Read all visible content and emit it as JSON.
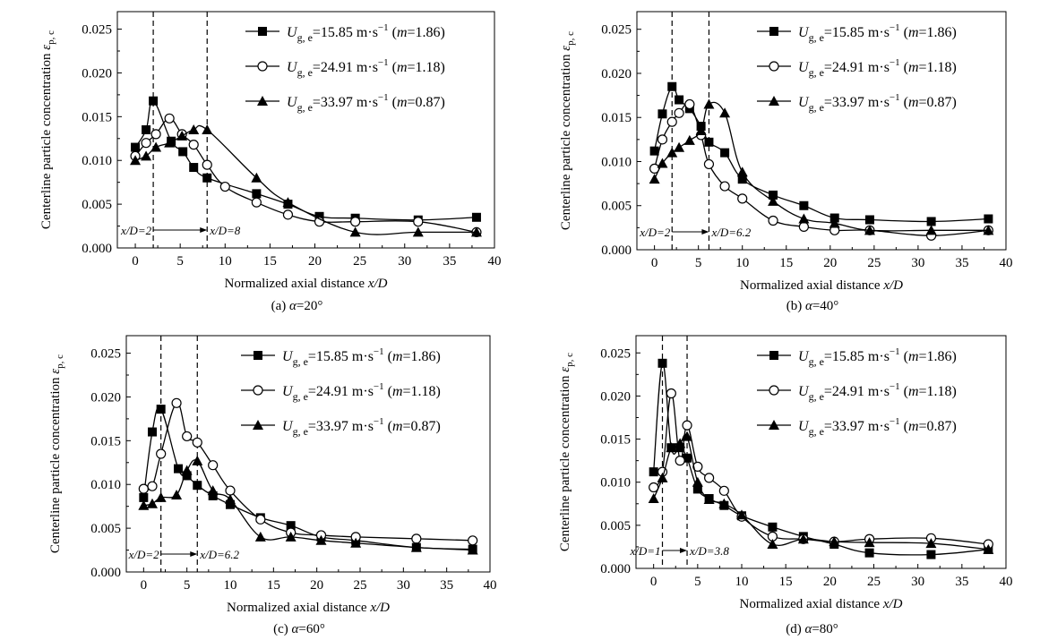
{
  "figure": {
    "legend_entries": [
      {
        "main": "U",
        "sub": "g, e",
        "value": "=15.85 m·s",
        "sup": "−1",
        "m_label": "m",
        "m_value": "=1.86)"
      },
      {
        "main": "U",
        "sub": "g, e",
        "value": "=24.91 m·s",
        "sup": "−1",
        "m_label": "m",
        "m_value": "=1.18)"
      },
      {
        "main": "U",
        "sub": "g, e",
        "value": "=33.97 m·s",
        "sup": "−1",
        "m_label": "m",
        "m_value": "=0.87)"
      }
    ],
    "ylabel_main": "Centerline particle concentration ",
    "ylabel_symbol": "ε",
    "ylabel_sub": "p, c",
    "xlabel_main": "Normalized axial distance ",
    "xlabel_symbol": "x/D",
    "marker_styles": [
      "filled-square",
      "open-circle",
      "filled-triangle"
    ]
  },
  "chart_data": [
    {
      "type": "line",
      "caption_prefix": "(a) ",
      "caption_symbol": "α",
      "caption_value": "=20°",
      "xlim": [
        -2,
        40
      ],
      "ylim": [
        0,
        0.027
      ],
      "xticks": [
        0,
        5,
        10,
        15,
        20,
        25,
        30,
        35,
        40
      ],
      "yticks": [
        0.0,
        0.005,
        0.01,
        0.015,
        0.02,
        0.025
      ],
      "ytick_labels": [
        "0.000",
        "0.005",
        "0.010",
        "0.015",
        "0.020",
        "0.025"
      ],
      "vlines": [
        2,
        8
      ],
      "annotation_left": "x/D=2",
      "annotation_right": "x/D=8",
      "series": [
        {
          "name": "Ug,e=15.85 m·s−1 (m=1.86)",
          "marker": "filled-square",
          "x": [
            0,
            1.2,
            2.0,
            4.0,
            5.3,
            6.5,
            8.0,
            13.5,
            17.0,
            20.5,
            24.5,
            31.5,
            38.0
          ],
          "y": [
            0.0115,
            0.0135,
            0.0168,
            0.0122,
            0.011,
            0.0092,
            0.008,
            0.0062,
            0.005,
            0.0036,
            0.0034,
            0.0032,
            0.0035
          ]
        },
        {
          "name": "Ug,e=24.91 m·s−1 (m=1.18)",
          "marker": "open-circle",
          "x": [
            0,
            1.2,
            2.3,
            3.8,
            5.2,
            6.5,
            8.0,
            10.0,
            13.5,
            17.0,
            20.5,
            24.5,
            31.5,
            38.0
          ],
          "y": [
            0.0105,
            0.012,
            0.013,
            0.0148,
            0.013,
            0.0118,
            0.0095,
            0.007,
            0.0052,
            0.0038,
            0.003,
            0.003,
            0.003,
            0.0018
          ]
        },
        {
          "name": "Ug,e=33.97 m·s−1 (m=0.87)",
          "marker": "filled-triangle",
          "x": [
            0,
            1.2,
            2.3,
            3.8,
            5.2,
            6.5,
            8.0,
            13.5,
            17.0,
            24.5,
            31.5,
            38.0
          ],
          "y": [
            0.01,
            0.0105,
            0.0115,
            0.012,
            0.0128,
            0.0135,
            0.0135,
            0.008,
            0.0052,
            0.0018,
            0.0018,
            0.0018
          ]
        }
      ]
    },
    {
      "type": "line",
      "caption_prefix": "(b) ",
      "caption_symbol": "α",
      "caption_value": "=40°",
      "xlim": [
        -2,
        40
      ],
      "ylim": [
        0,
        0.027
      ],
      "xticks": [
        0,
        5,
        10,
        15,
        20,
        25,
        30,
        35,
        40
      ],
      "yticks": [
        0.0,
        0.005,
        0.01,
        0.015,
        0.02,
        0.025
      ],
      "ytick_labels": [
        "0.000",
        "0.005",
        "0.010",
        "0.015",
        "0.020",
        "0.025"
      ],
      "vlines": [
        2,
        6.2
      ],
      "annotation_left": "x/D=2",
      "annotation_right": "x/D=6.2",
      "series": [
        {
          "name": "Ug,e=15.85 m·s−1 (m=1.86)",
          "marker": "filled-square",
          "x": [
            0,
            0.9,
            2.0,
            2.8,
            4.0,
            5.3,
            6.2,
            8.0,
            10.0,
            13.5,
            17.0,
            20.5,
            24.5,
            31.5,
            38.0
          ],
          "y": [
            0.0112,
            0.0154,
            0.0185,
            0.017,
            0.016,
            0.014,
            0.0122,
            0.011,
            0.008,
            0.0062,
            0.005,
            0.0036,
            0.0034,
            0.0032,
            0.0035
          ]
        },
        {
          "name": "Ug,e=24.91 m·s−1 (m=1.18)",
          "marker": "open-circle",
          "x": [
            0,
            0.9,
            2.0,
            2.8,
            4.0,
            5.3,
            6.2,
            8.0,
            10.0,
            13.5,
            17.0,
            20.5,
            24.5,
            31.5,
            38.0
          ],
          "y": [
            0.0092,
            0.0125,
            0.0145,
            0.0155,
            0.0165,
            0.013,
            0.0097,
            0.0072,
            0.0058,
            0.0033,
            0.0026,
            0.0022,
            0.0022,
            0.0016,
            0.0022
          ]
        },
        {
          "name": "Ug,e=33.97 m·s−1 (m=0.87)",
          "marker": "filled-triangle",
          "x": [
            0,
            0.9,
            2.0,
            2.8,
            4.0,
            5.3,
            6.2,
            8.0,
            10.0,
            13.5,
            17.0,
            20.5,
            24.5,
            31.5,
            38.0
          ],
          "y": [
            0.008,
            0.0098,
            0.011,
            0.0116,
            0.0124,
            0.0135,
            0.0165,
            0.0155,
            0.0088,
            0.0055,
            0.0035,
            0.003,
            0.0022,
            0.0022,
            0.0022
          ]
        }
      ]
    },
    {
      "type": "line",
      "caption_prefix": "(c) ",
      "caption_symbol": "α",
      "caption_value": "=60°",
      "xlim": [
        -2,
        40
      ],
      "ylim": [
        0,
        0.027
      ],
      "xticks": [
        0,
        5,
        10,
        15,
        20,
        25,
        30,
        35,
        40
      ],
      "yticks": [
        0.0,
        0.005,
        0.01,
        0.015,
        0.02,
        0.025
      ],
      "ytick_labels": [
        "0.000",
        "0.005",
        "0.010",
        "0.015",
        "0.020",
        "0.025"
      ],
      "vlines": [
        2,
        6.2
      ],
      "annotation_left": "x/D=2",
      "annotation_right": "x/D=6.2",
      "series": [
        {
          "name": "Ug,e=15.85 m·s−1 (m=1.86)",
          "marker": "filled-square",
          "x": [
            0,
            1.0,
            2.0,
            4.0,
            5.0,
            6.2,
            8.0,
            10.0,
            13.5,
            17.0,
            20.5,
            24.5,
            31.5,
            38.0
          ],
          "y": [
            0.0085,
            0.016,
            0.0186,
            0.0118,
            0.011,
            0.0099,
            0.0087,
            0.0077,
            0.0062,
            0.0053,
            0.004,
            0.0036,
            0.0028,
            0.0026
          ]
        },
        {
          "name": "Ug,e=24.91 m·s−1 (m=1.18)",
          "marker": "open-circle",
          "x": [
            0,
            1.0,
            2.0,
            3.8,
            5.0,
            6.2,
            8.0,
            10.0,
            13.5,
            17.0,
            20.5,
            24.5,
            31.5,
            38.0
          ],
          "y": [
            0.0095,
            0.0098,
            0.0135,
            0.0193,
            0.0155,
            0.0148,
            0.0122,
            0.0093,
            0.006,
            0.0045,
            0.0042,
            0.004,
            0.0038,
            0.0036
          ]
        },
        {
          "name": "Ug,e=33.97 m·s−1 (m=0.87)",
          "marker": "filled-triangle",
          "x": [
            0,
            1.0,
            2.0,
            3.8,
            5.0,
            6.2,
            8.0,
            10.0,
            13.5,
            17.0,
            20.5,
            24.5,
            31.5,
            38.0
          ],
          "y": [
            0.0076,
            0.0078,
            0.0085,
            0.0088,
            0.0116,
            0.0127,
            0.0093,
            0.0083,
            0.004,
            0.004,
            0.0036,
            0.0033,
            0.0028,
            0.0025
          ]
        }
      ]
    },
    {
      "type": "line",
      "caption_prefix": "(d) ",
      "caption_symbol": "α",
      "caption_value": "=80°",
      "xlim": [
        -2,
        40
      ],
      "ylim": [
        0,
        0.027
      ],
      "xticks": [
        0,
        5,
        10,
        15,
        20,
        25,
        30,
        35,
        40
      ],
      "yticks": [
        0.0,
        0.005,
        0.01,
        0.015,
        0.02,
        0.025
      ],
      "ytick_labels": [
        "0.000",
        "0.005",
        "0.010",
        "0.015",
        "0.020",
        "0.025"
      ],
      "vlines": [
        1,
        3.8
      ],
      "annotation_left": "x/D=1",
      "annotation_right": "x/D=3.8",
      "series": [
        {
          "name": "Ug,e=15.85 m·s−1 (m=1.86)",
          "marker": "filled-square",
          "x": [
            0,
            1.0,
            2.0,
            3.0,
            3.8,
            5.0,
            6.3,
            8.0,
            10.0,
            13.5,
            17.0,
            20.5,
            24.5,
            31.5,
            38.0
          ],
          "y": [
            0.0112,
            0.0238,
            0.014,
            0.014,
            0.0128,
            0.0092,
            0.0081,
            0.0073,
            0.0061,
            0.0048,
            0.0037,
            0.0028,
            0.0018,
            0.0016,
            0.0022
          ]
        },
        {
          "name": "Ug,e=24.91 m·s−1 (m=1.18)",
          "marker": "open-circle",
          "x": [
            0,
            1.0,
            2.0,
            3.0,
            3.8,
            5.0,
            6.3,
            8.0,
            10.0,
            13.5,
            17.0,
            20.5,
            24.5,
            31.5,
            38.0
          ],
          "y": [
            0.0094,
            0.0112,
            0.0203,
            0.0125,
            0.0166,
            0.0118,
            0.0105,
            0.009,
            0.006,
            0.0037,
            0.0034,
            0.0031,
            0.0034,
            0.0035,
            0.0028
          ]
        },
        {
          "name": "Ug,e=33.97 m·s−1 (m=0.87)",
          "marker": "filled-triangle",
          "x": [
            0,
            1.0,
            2.0,
            3.0,
            3.8,
            5.0,
            6.3,
            8.0,
            10.0,
            13.5,
            17.0,
            20.5,
            24.5,
            31.5,
            38.0
          ],
          "y": [
            0.0081,
            0.0105,
            0.014,
            0.0145,
            0.0153,
            0.01,
            0.008,
            0.0075,
            0.0062,
            0.0028,
            0.0034,
            0.0031,
            0.003,
            0.0029,
            0.0022
          ]
        }
      ]
    }
  ]
}
